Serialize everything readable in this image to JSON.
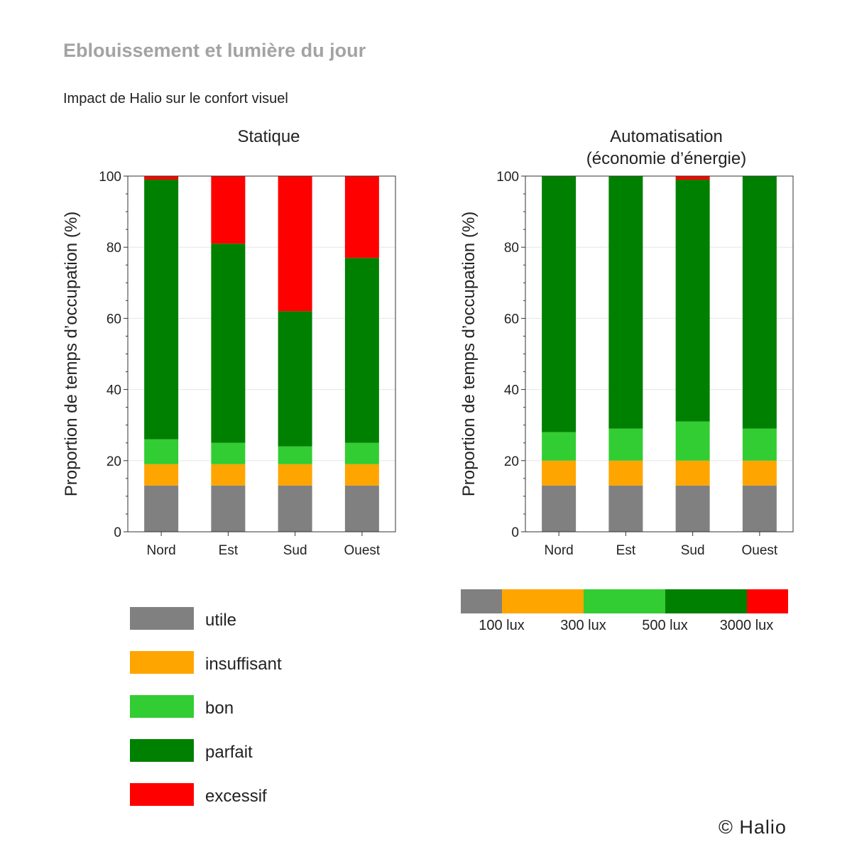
{
  "header": {
    "title": "Eblouissement et lumière du jour",
    "subtitle": "Impact de Halio sur le confort visuel"
  },
  "credit": "© Halio",
  "colors": {
    "utile": "#808080",
    "insuffisant": "#ffa500",
    "bon": "#32cd32",
    "parfait": "#008000",
    "excessif": "#ff0000"
  },
  "chart_data": [
    {
      "type": "bar",
      "stacked": true,
      "title": "Statique",
      "ylabel": "Proportion de temps d’occupation (%)",
      "ylim": [
        0,
        100
      ],
      "yticks": [
        0,
        20,
        40,
        60,
        80,
        100
      ],
      "categories": [
        "Nord",
        "Est",
        "Sud",
        "Ouest"
      ],
      "series": [
        {
          "name": "utile",
          "values": [
            13,
            13,
            13,
            13
          ]
        },
        {
          "name": "insuffisant",
          "values": [
            6,
            6,
            6,
            6
          ]
        },
        {
          "name": "bon",
          "values": [
            7,
            6,
            5,
            6
          ]
        },
        {
          "name": "parfait",
          "values": [
            73,
            56,
            38,
            52
          ]
        },
        {
          "name": "excessif",
          "values": [
            1,
            19,
            38,
            23
          ]
        }
      ]
    },
    {
      "type": "bar",
      "stacked": true,
      "title": "Automatisation",
      "title2": "(économie d’énergie)",
      "ylabel": "Proportion de temps d’occupation (%)",
      "ylim": [
        0,
        100
      ],
      "yticks": [
        0,
        20,
        40,
        60,
        80,
        100
      ],
      "categories": [
        "Nord",
        "Est",
        "Sud",
        "Ouest"
      ],
      "series": [
        {
          "name": "utile",
          "values": [
            13,
            13,
            13,
            13
          ]
        },
        {
          "name": "insuffisant",
          "values": [
            7,
            7,
            7,
            7
          ]
        },
        {
          "name": "bon",
          "values": [
            8,
            9,
            11,
            9
          ]
        },
        {
          "name": "parfait",
          "values": [
            72,
            71,
            68,
            71
          ]
        },
        {
          "name": "excessif",
          "values": [
            0,
            0,
            1,
            0
          ]
        }
      ]
    }
  ],
  "legend": [
    {
      "key": "utile",
      "label": "utile"
    },
    {
      "key": "insuffisant",
      "label": "insuffisant"
    },
    {
      "key": "bon",
      "label": "bon"
    },
    {
      "key": "parfait",
      "label": "parfait"
    },
    {
      "key": "excessif",
      "label": "excessif"
    }
  ],
  "lux_scale": {
    "segments": [
      "utile",
      "insuffisant",
      "insuffisant",
      "bon",
      "bon",
      "parfait",
      "parfait",
      "excessif"
    ],
    "labels": [
      "100 lux",
      "300 lux",
      "500 lux",
      "3000 lux"
    ]
  }
}
